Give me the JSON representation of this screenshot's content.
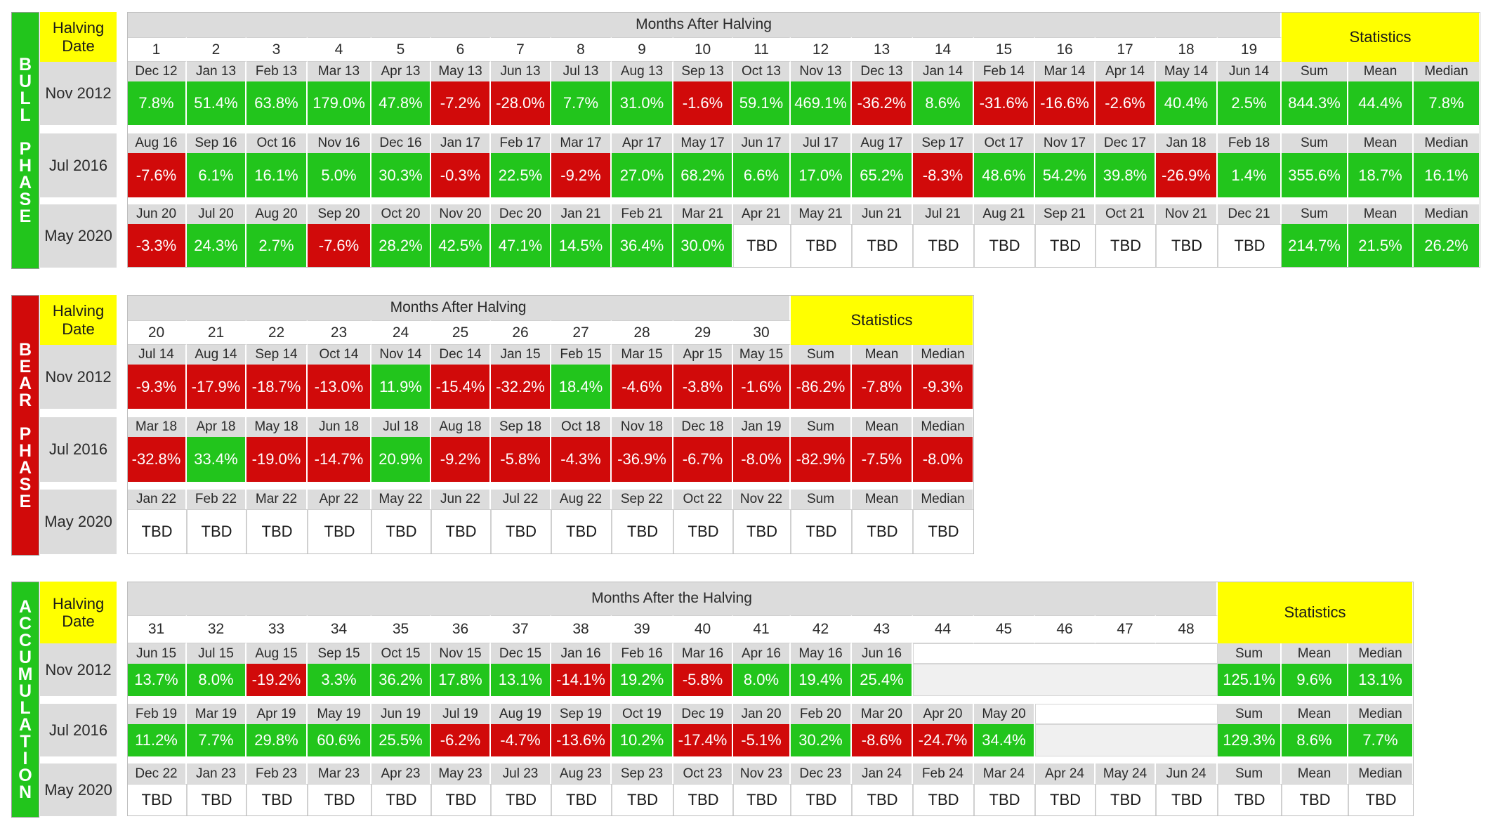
{
  "colors": {
    "green": "#22c51c",
    "red": "#d10a0a",
    "yellow": "#ffff00",
    "gray": "#dcdcdc"
  },
  "labels": {
    "halving_date": "Halving Date",
    "statistics": "Statistics",
    "sum": "Sum",
    "mean": "Mean",
    "median": "Median"
  },
  "tables": [
    {
      "phase_label": "BULL PHASE",
      "phase_color": "#22c51c",
      "header_title": "Months After Halving",
      "month_numbers": [
        "1",
        "2",
        "3",
        "4",
        "5",
        "6",
        "7",
        "8",
        "9",
        "10",
        "11",
        "12",
        "13",
        "14",
        "15",
        "16",
        "17",
        "18",
        "19"
      ],
      "rows": [
        {
          "date": "Nov 2012",
          "months": [
            "Dec 12",
            "Jan 13",
            "Feb 13",
            "Mar 13",
            "Apr 13",
            "May 13",
            "Jun 13",
            "Jul 13",
            "Aug 13",
            "Sep 13",
            "Oct 13",
            "Nov 13",
            "Dec 13",
            "Jan 14",
            "Feb 14",
            "Mar 14",
            "Apr 14",
            "May 14",
            "Jun 14"
          ],
          "values": [
            "7.8%",
            "51.4%",
            "63.8%",
            "179.0%",
            "47.8%",
            "-7.2%",
            "-28.0%",
            "7.7%",
            "31.0%",
            "-1.6%",
            "59.1%",
            "469.1%",
            "-36.2%",
            "8.6%",
            "-31.6%",
            "-16.6%",
            "-2.6%",
            "40.4%",
            "2.5%"
          ],
          "stats": [
            "844.3%",
            "44.4%",
            "7.8%"
          ]
        },
        {
          "date": "Jul 2016",
          "months": [
            "Aug 16",
            "Sep 16",
            "Oct 16",
            "Nov 16",
            "Dec 16",
            "Jan 17",
            "Feb 17",
            "Mar 17",
            "Apr 17",
            "May 17",
            "Jun 17",
            "Jul 17",
            "Aug 17",
            "Sep 17",
            "Oct 17",
            "Nov 17",
            "Dec 17",
            "Jan 18",
            "Feb 18"
          ],
          "values": [
            "-7.6%",
            "6.1%",
            "16.1%",
            "5.0%",
            "30.3%",
            "-0.3%",
            "22.5%",
            "-9.2%",
            "27.0%",
            "68.2%",
            "6.6%",
            "17.0%",
            "65.2%",
            "-8.3%",
            "48.6%",
            "54.2%",
            "39.8%",
            "-26.9%",
            "1.4%"
          ],
          "stats": [
            "355.6%",
            "18.7%",
            "16.1%"
          ]
        },
        {
          "date": "May 2020",
          "months": [
            "Jun 20",
            "Jul 20",
            "Aug 20",
            "Sep 20",
            "Oct 20",
            "Nov 20",
            "Dec 20",
            "Jan 21",
            "Feb 21",
            "Mar 21",
            "Apr 21",
            "May 21",
            "Jun 21",
            "Jul 21",
            "Aug 21",
            "Sep 21",
            "Oct 21",
            "Nov 21",
            "Dec 21"
          ],
          "values": [
            "-3.3%",
            "24.3%",
            "2.7%",
            "-7.6%",
            "28.2%",
            "42.5%",
            "47.1%",
            "14.5%",
            "36.4%",
            "30.0%",
            "TBD",
            "TBD",
            "TBD",
            "TBD",
            "TBD",
            "TBD",
            "TBD",
            "TBD",
            "TBD"
          ],
          "stats": [
            "214.7%",
            "21.5%",
            "26.2%"
          ]
        }
      ]
    },
    {
      "phase_label": "BEAR PHASE",
      "phase_color": "#d10a0a",
      "header_title": "Months After Halving",
      "month_numbers": [
        "20",
        "21",
        "22",
        "23",
        "24",
        "25",
        "26",
        "27",
        "28",
        "29",
        "30"
      ],
      "rows": [
        {
          "date": "Nov 2012",
          "months": [
            "Jul 14",
            "Aug 14",
            "Sep 14",
            "Oct 14",
            "Nov 14",
            "Dec 14",
            "Jan 15",
            "Feb 15",
            "Mar 15",
            "Apr 15",
            "May 15"
          ],
          "values": [
            "-9.3%",
            "-17.9%",
            "-18.7%",
            "-13.0%",
            "11.9%",
            "-15.4%",
            "-32.2%",
            "18.4%",
            "-4.6%",
            "-3.8%",
            "-1.6%"
          ],
          "stats": [
            "-86.2%",
            "-7.8%",
            "-9.3%"
          ]
        },
        {
          "date": "Jul 2016",
          "months": [
            "Mar 18",
            "Apr 18",
            "May 18",
            "Jun 18",
            "Jul 18",
            "Aug 18",
            "Sep 18",
            "Oct 18",
            "Nov 18",
            "Dec 18",
            "Jan 19"
          ],
          "values": [
            "-32.8%",
            "33.4%",
            "-19.0%",
            "-14.7%",
            "20.9%",
            "-9.2%",
            "-5.8%",
            "-4.3%",
            "-36.9%",
            "-6.7%",
            "-8.0%"
          ],
          "stats": [
            "-82.9%",
            "-7.5%",
            "-8.0%"
          ]
        },
        {
          "date": "May 2020",
          "months": [
            "Jan 22",
            "Feb 22",
            "Mar 22",
            "Apr 22",
            "May 22",
            "Jun 22",
            "Jul 22",
            "Aug 22",
            "Sep 22",
            "Oct 22",
            "Nov 22"
          ],
          "values": [
            "TBD",
            "TBD",
            "TBD",
            "TBD",
            "TBD",
            "TBD",
            "TBD",
            "TBD",
            "TBD",
            "TBD",
            "TBD"
          ],
          "stats": [
            "TBD",
            "TBD",
            "TBD"
          ]
        }
      ]
    },
    {
      "phase_label": "ACCUMULATION",
      "phase_color": "#22c51c",
      "header_title": "Months After the Halving",
      "month_numbers": [
        "31",
        "32",
        "33",
        "34",
        "35",
        "36",
        "37",
        "38",
        "39",
        "40",
        "41",
        "42",
        "43",
        "44",
        "45",
        "46",
        "47",
        "48"
      ],
      "rows": [
        {
          "date": "Nov 2012",
          "months": [
            "Jun 15",
            "Jul 15",
            "Aug 15",
            "Sep 15",
            "Oct 15",
            "Nov 15",
            "Dec 15",
            "Jan 16",
            "Feb 16",
            "Mar 16",
            "Apr 16",
            "May 16",
            "Jun 16"
          ],
          "values": [
            "13.7%",
            "8.0%",
            "-19.2%",
            "3.3%",
            "36.2%",
            "17.8%",
            "13.1%",
            "-14.1%",
            "19.2%",
            "-5.8%",
            "8.0%",
            "19.4%",
            "25.4%"
          ],
          "stats": [
            "125.1%",
            "9.6%",
            "13.1%"
          ]
        },
        {
          "date": "Jul 2016",
          "months": [
            "Feb 19",
            "Mar 19",
            "Apr 19",
            "May 19",
            "Jun 19",
            "Jul 19",
            "Aug 19",
            "Sep 19",
            "Oct 19",
            "Dec 19",
            "Jan 20",
            "Feb 20",
            "Mar 20",
            "Apr 20",
            "May 20"
          ],
          "values": [
            "11.2%",
            "7.7%",
            "29.8%",
            "60.6%",
            "25.5%",
            "-6.2%",
            "-4.7%",
            "-13.6%",
            "10.2%",
            "-17.4%",
            "-5.1%",
            "30.2%",
            "-8.6%",
            "-24.7%",
            "34.4%"
          ],
          "stats": [
            "129.3%",
            "8.6%",
            "7.7%"
          ]
        },
        {
          "date": "May 2020",
          "months": [
            "Dec 22",
            "Jan 23",
            "Feb 23",
            "Mar 23",
            "Apr 23",
            "May 23",
            "Jul 23",
            "Aug 23",
            "Sep 23",
            "Oct 23",
            "Nov 23",
            "Dec 23",
            "Jan 24",
            "Feb 24",
            "Mar 24",
            "Apr 24",
            "May 24",
            "Jun 24"
          ],
          "values": [
            "TBD",
            "TBD",
            "TBD",
            "TBD",
            "TBD",
            "TBD",
            "TBD",
            "TBD",
            "TBD",
            "TBD",
            "TBD",
            "TBD",
            "TBD",
            "TBD",
            "TBD",
            "TBD",
            "TBD",
            "TBD"
          ],
          "stats": [
            "TBD",
            "TBD",
            "TBD"
          ]
        }
      ]
    }
  ]
}
